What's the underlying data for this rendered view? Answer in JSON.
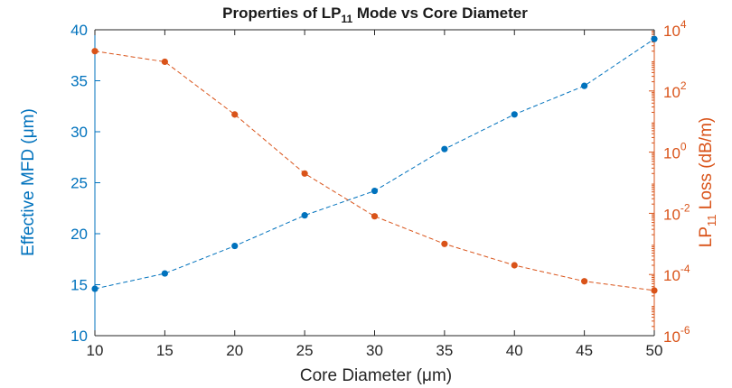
{
  "chart_data": {
    "type": "line",
    "title_parts": {
      "prefix": "Properties of LP",
      "sub": "11",
      "suffix": " Mode vs Core Diameter"
    },
    "xlabel": "Core Diameter (μm)",
    "ylabel_left": "Effective MFD (μm)",
    "ylabel_right_parts": {
      "prefix": "LP",
      "sub": "11",
      "suffix": " Loss (dB/m)"
    },
    "x": [
      10,
      15,
      20,
      25,
      30,
      35,
      40,
      45,
      50
    ],
    "xlim": [
      10,
      50
    ],
    "xticks": [
      10,
      15,
      20,
      25,
      30,
      35,
      40,
      45,
      50
    ],
    "ylim_left": [
      10,
      40
    ],
    "yticks_left": [
      10,
      15,
      20,
      25,
      30,
      35,
      40
    ],
    "ylim_right_log10": [
      -6,
      4
    ],
    "yticks_right_exponents": [
      -6,
      -4,
      -2,
      0,
      2,
      4
    ],
    "right_tick_base": "10",
    "series": [
      {
        "name": "Effective MFD",
        "axis": "left",
        "scale": "linear",
        "color": "#0072BD",
        "values": [
          14.6,
          16.1,
          18.8,
          21.8,
          24.2,
          28.3,
          31.7,
          34.5,
          39.1
        ]
      },
      {
        "name": "LP11 Loss",
        "axis": "right",
        "scale": "log",
        "color": "#D95319",
        "values": [
          2000,
          900,
          17,
          0.2,
          0.008,
          0.001,
          0.0002,
          6e-05,
          3e-05
        ]
      }
    ],
    "colors": {
      "left_axis": "#0072BD",
      "right_axis": "#D95319",
      "bottom_axis": "#262626"
    }
  }
}
